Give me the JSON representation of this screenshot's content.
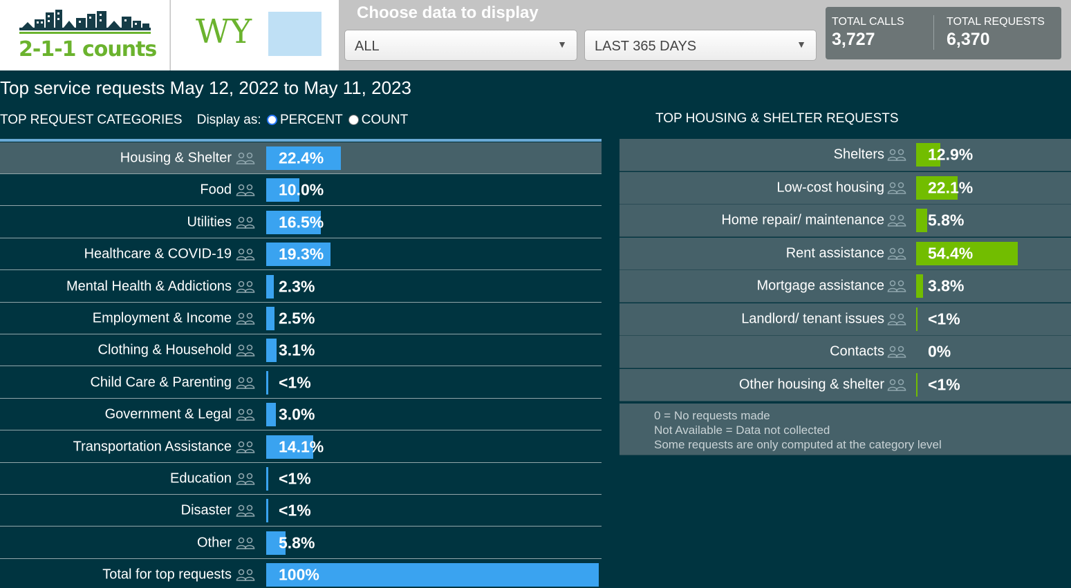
{
  "header": {
    "logo_text": "2-1-1 counts",
    "state_abbr": "WY",
    "choose_title": "Choose data to display",
    "type_select": "ALL",
    "range_select": "LAST 365 DAYS",
    "total_calls_label": "TOTAL CALLS",
    "total_calls_value": "3,727",
    "total_requests_label": "TOTAL REQUESTS",
    "total_requests_value": "6,370"
  },
  "main": {
    "title": "Top service requests May 12, 2022 to May 11, 2023",
    "categories_heading": "TOP REQUEST CATEGORIES",
    "display_as": "Display as:",
    "option_percent": "PERCENT",
    "option_count": "COUNT"
  },
  "categories": [
    {
      "label": "Housing & Shelter",
      "value": "22.4%",
      "fraction": 0.224
    },
    {
      "label": "Food",
      "value": "10.0%",
      "fraction": 0.1
    },
    {
      "label": "Utilities",
      "value": "16.5%",
      "fraction": 0.165
    },
    {
      "label": "Healthcare & COVID-19",
      "value": "19.3%",
      "fraction": 0.193
    },
    {
      "label": "Mental Health & Addictions",
      "value": "2.3%",
      "fraction": 0.023
    },
    {
      "label": "Employment & Income",
      "value": "2.5%",
      "fraction": 0.025
    },
    {
      "label": "Clothing & Household",
      "value": "3.1%",
      "fraction": 0.031
    },
    {
      "label": "Child Care & Parenting",
      "value": "<1%",
      "fraction": 0.004
    },
    {
      "label": "Government & Legal",
      "value": "3.0%",
      "fraction": 0.03
    },
    {
      "label": "Transportation Assistance",
      "value": "14.1%",
      "fraction": 0.141
    },
    {
      "label": "Education",
      "value": "<1%",
      "fraction": 0.004
    },
    {
      "label": "Disaster",
      "value": "<1%",
      "fraction": 0.004
    },
    {
      "label": "Other",
      "value": "5.8%",
      "fraction": 0.058
    },
    {
      "label": "Total for top requests",
      "value": "100%",
      "fraction": 1.0
    }
  ],
  "housing": {
    "heading": "TOP HOUSING & SHELTER REQUESTS",
    "items": [
      {
        "label": "Shelters",
        "value": "12.9%",
        "fraction": 0.129
      },
      {
        "label": "Low-cost housing",
        "value": "22.1%",
        "fraction": 0.221
      },
      {
        "label": "Home repair/ maintenance",
        "value": "5.8%",
        "fraction": 0.058
      },
      {
        "label": "Rent assistance",
        "value": "54.4%",
        "fraction": 0.544
      },
      {
        "label": "Mortgage assistance",
        "value": "3.8%",
        "fraction": 0.038
      },
      {
        "label": "Landlord/ tenant issues",
        "value": "<1%",
        "fraction": 0.004
      },
      {
        "label": "Contacts",
        "value": "0%",
        "fraction": 0.0
      },
      {
        "label": "Other housing & shelter",
        "value": "<1%",
        "fraction": 0.004
      }
    ],
    "notes": [
      "0 = No requests made",
      "Not Available = Data not collected",
      "Some requests are only computed at the category level"
    ]
  },
  "colors": {
    "background": "#003440",
    "category_bar": "#3aa3f0",
    "housing_bar": "#72bd00",
    "logo_green": "#6bb32e"
  }
}
